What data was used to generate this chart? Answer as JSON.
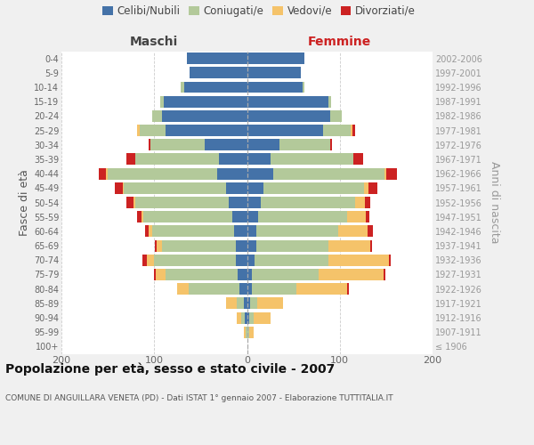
{
  "age_groups": [
    "100+",
    "95-99",
    "90-94",
    "85-89",
    "80-84",
    "75-79",
    "70-74",
    "65-69",
    "60-64",
    "55-59",
    "50-54",
    "45-49",
    "40-44",
    "35-39",
    "30-34",
    "25-29",
    "20-24",
    "15-19",
    "10-14",
    "5-9",
    "0-4"
  ],
  "birth_years": [
    "≤ 1906",
    "1907-1911",
    "1912-1916",
    "1917-1921",
    "1922-1926",
    "1927-1931",
    "1932-1936",
    "1937-1941",
    "1942-1946",
    "1947-1951",
    "1952-1956",
    "1957-1961",
    "1962-1966",
    "1967-1971",
    "1972-1976",
    "1977-1981",
    "1982-1986",
    "1987-1991",
    "1992-1996",
    "1997-2001",
    "2002-2006"
  ],
  "maschi": {
    "celibi": [
      0,
      0,
      2,
      3,
      8,
      10,
      12,
      12,
      14,
      16,
      20,
      23,
      32,
      30,
      46,
      88,
      92,
      90,
      68,
      62,
      65
    ],
    "coniugati": [
      0,
      1,
      4,
      8,
      55,
      78,
      88,
      80,
      88,
      96,
      100,
      110,
      118,
      90,
      58,
      28,
      10,
      4,
      3,
      0,
      0
    ],
    "vedovi": [
      0,
      2,
      5,
      12,
      12,
      10,
      8,
      5,
      4,
      2,
      2,
      1,
      2,
      0,
      0,
      2,
      0,
      0,
      0,
      0,
      0
    ],
    "divorziati": [
      0,
      0,
      0,
      0,
      0,
      2,
      5,
      2,
      4,
      4,
      8,
      8,
      8,
      10,
      2,
      0,
      0,
      0,
      0,
      0,
      0
    ]
  },
  "femmine": {
    "nubili": [
      0,
      0,
      2,
      3,
      5,
      5,
      8,
      10,
      10,
      12,
      15,
      18,
      28,
      25,
      35,
      82,
      90,
      88,
      60,
      58,
      62
    ],
    "coniugate": [
      0,
      2,
      5,
      8,
      48,
      72,
      80,
      78,
      88,
      96,
      102,
      108,
      120,
      90,
      55,
      30,
      12,
      3,
      2,
      0,
      0
    ],
    "vedove": [
      0,
      5,
      18,
      28,
      55,
      70,
      65,
      45,
      32,
      20,
      10,
      5,
      2,
      0,
      0,
      2,
      0,
      0,
      0,
      0,
      0
    ],
    "divorziate": [
      0,
      0,
      0,
      0,
      2,
      2,
      2,
      2,
      6,
      4,
      6,
      10,
      12,
      10,
      2,
      3,
      0,
      0,
      0,
      0,
      0
    ]
  },
  "colors": {
    "celibi": "#4472a8",
    "coniugati": "#b3c99a",
    "vedovi": "#f5c36a",
    "divorziati": "#cc2222"
  },
  "title": "Popolazione per età, sesso e stato civile - 2007",
  "subtitle": "COMUNE DI ANGUILLARA VENETA (PD) - Dati ISTAT 1° gennaio 2007 - Elaborazione TUTTITALIA.IT",
  "ylabel_left": "Fasce di età",
  "ylabel_right": "Anni di nascita",
  "maschi_label": "Maschi",
  "femmine_label": "Femmine",
  "xlim": 200,
  "bg_color": "#f0f0f0",
  "plot_bg": "#ffffff",
  "legend_labels": [
    "Celibi/Nubili",
    "Coniugati/e",
    "Vedovi/e",
    "Divorziati/e"
  ]
}
